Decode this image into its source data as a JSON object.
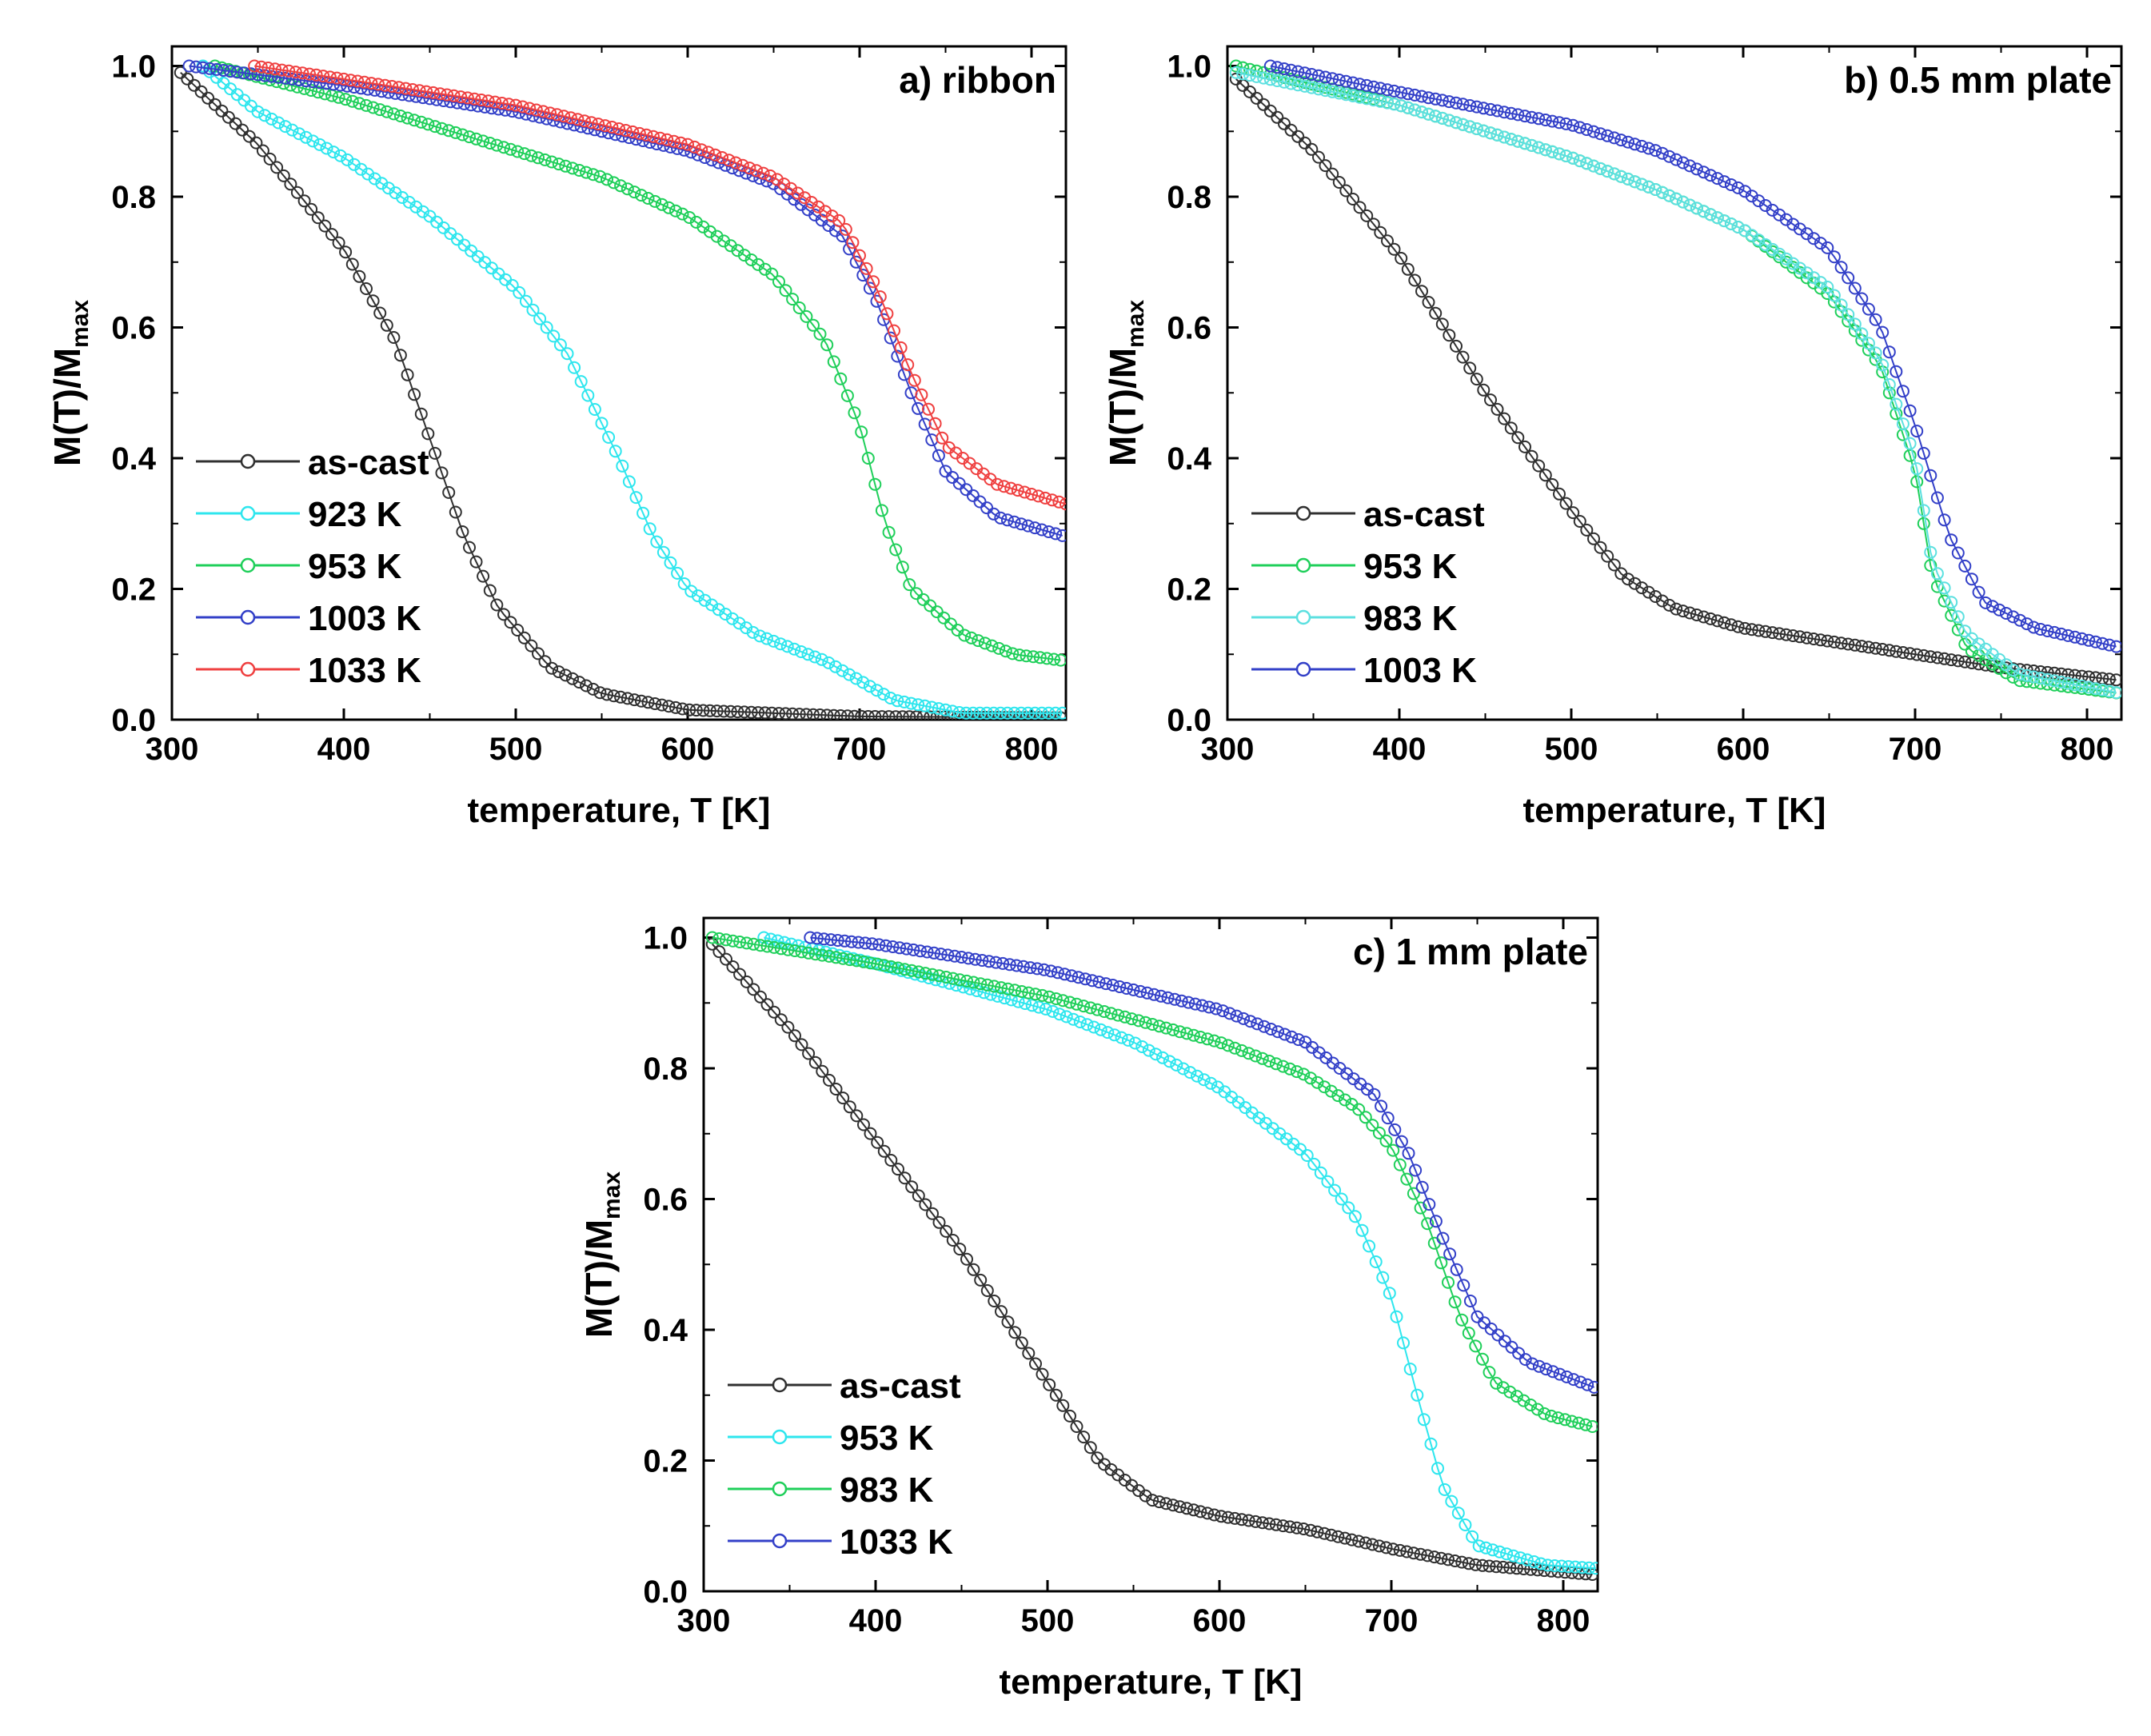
{
  "colors": {
    "as-cast": "#303030",
    "923 K": "#2ee6ee",
    "953 K": "#1fcf5a",
    "953 K_c": "#2ee6ee",
    "983 K": "#1fcf5a",
    "983 K_b": "#5ce0e0",
    "1003 K": "#3340c8",
    "1033 K": "#ef4040"
  },
  "chart_data": [
    {
      "id": "a",
      "type": "scatter",
      "title": "a) ribbon",
      "xlabel": "temperature, T [K]",
      "ylabel": "M(T)/M",
      "ylabel_sub": "max",
      "xlim": [
        300,
        820
      ],
      "ylim": [
        0.0,
        1.03
      ],
      "xticks": [
        "300",
        "400",
        "500",
        "600",
        "700",
        "800"
      ],
      "yticks": [
        "0.0",
        "0.2",
        "0.4",
        "0.6",
        "0.8",
        "1.0"
      ],
      "legend_position": "lower-left",
      "series": [
        {
          "name": "as-cast",
          "color_key": "as-cast",
          "start": 305,
          "points": [
            [
              305,
              0.99
            ],
            [
              350,
              0.88
            ],
            [
              400,
              0.72
            ],
            [
              430,
              0.58
            ],
            [
              450,
              0.43
            ],
            [
              470,
              0.28
            ],
            [
              490,
              0.17
            ],
            [
              520,
              0.08
            ],
            [
              550,
              0.04
            ],
            [
              600,
              0.015
            ],
            [
              700,
              0.005
            ],
            [
              820,
              0.003
            ]
          ]
        },
        {
          "name": "923 K",
          "color_key": "923 K",
          "start": 318,
          "points": [
            [
              318,
              1.0
            ],
            [
              350,
              0.93
            ],
            [
              400,
              0.86
            ],
            [
              450,
              0.77
            ],
            [
              500,
              0.66
            ],
            [
              530,
              0.56
            ],
            [
              560,
              0.4
            ],
            [
              580,
              0.28
            ],
            [
              600,
              0.2
            ],
            [
              640,
              0.13
            ],
            [
              680,
              0.09
            ],
            [
              720,
              0.03
            ],
            [
              760,
              0.01
            ],
            [
              820,
              0.01
            ]
          ]
        },
        {
          "name": "953 K",
          "color_key": "953 K",
          "start": 325,
          "points": [
            [
              325,
              1.0
            ],
            [
              400,
              0.95
            ],
            [
              450,
              0.91
            ],
            [
              500,
              0.87
            ],
            [
              550,
              0.83
            ],
            [
              600,
              0.77
            ],
            [
              650,
              0.68
            ],
            [
              680,
              0.58
            ],
            [
              700,
              0.45
            ],
            [
              715,
              0.3
            ],
            [
              730,
              0.2
            ],
            [
              760,
              0.13
            ],
            [
              790,
              0.1
            ],
            [
              820,
              0.09
            ]
          ]
        },
        {
          "name": "1003 K",
          "color_key": "1003 K",
          "start": 310,
          "points": [
            [
              310,
              1.0
            ],
            [
              400,
              0.97
            ],
            [
              450,
              0.95
            ],
            [
              500,
              0.93
            ],
            [
              550,
              0.9
            ],
            [
              600,
              0.87
            ],
            [
              650,
              0.82
            ],
            [
              690,
              0.74
            ],
            [
              710,
              0.64
            ],
            [
              730,
              0.5
            ],
            [
              750,
              0.38
            ],
            [
              780,
              0.31
            ],
            [
              820,
              0.28
            ]
          ]
        },
        {
          "name": "1033 K",
          "color_key": "1033 K",
          "start": 348,
          "points": [
            [
              348,
              1.0
            ],
            [
              400,
              0.98
            ],
            [
              450,
              0.96
            ],
            [
              500,
              0.94
            ],
            [
              550,
              0.91
            ],
            [
              600,
              0.88
            ],
            [
              650,
              0.83
            ],
            [
              690,
              0.76
            ],
            [
              710,
              0.66
            ],
            [
              730,
              0.53
            ],
            [
              750,
              0.42
            ],
            [
              780,
              0.36
            ],
            [
              820,
              0.33
            ]
          ]
        }
      ]
    },
    {
      "id": "b",
      "type": "scatter",
      "title": "b) 0.5 mm plate",
      "xlabel": "temperature, T [K]",
      "ylabel": "M(T)/M",
      "ylabel_sub": "max",
      "xlim": [
        300,
        820
      ],
      "ylim": [
        0.0,
        1.03
      ],
      "xticks": [
        "300",
        "400",
        "500",
        "600",
        "700",
        "800"
      ],
      "yticks": [
        "0.0",
        "0.2",
        "0.4",
        "0.6",
        "0.8",
        "1.0"
      ],
      "legend_position": "lower-left",
      "series": [
        {
          "name": "as-cast",
          "color_key": "as-cast",
          "start": 305,
          "points": [
            [
              305,
              0.98
            ],
            [
              350,
              0.87
            ],
            [
              400,
              0.71
            ],
            [
              450,
              0.5
            ],
            [
              500,
              0.32
            ],
            [
              530,
              0.22
            ],
            [
              560,
              0.17
            ],
            [
              600,
              0.14
            ],
            [
              650,
              0.12
            ],
            [
              700,
              0.1
            ],
            [
              750,
              0.08
            ],
            [
              820,
              0.06
            ]
          ]
        },
        {
          "name": "953 K",
          "color_key": "983 K",
          "start": 305,
          "points": [
            [
              305,
              1.0
            ],
            [
              400,
              0.94
            ],
            [
              500,
              0.86
            ],
            [
              550,
              0.81
            ],
            [
              600,
              0.75
            ],
            [
              650,
              0.65
            ],
            [
              680,
              0.54
            ],
            [
              700,
              0.38
            ],
            [
              710,
              0.22
            ],
            [
              730,
              0.11
            ],
            [
              760,
              0.06
            ],
            [
              820,
              0.04
            ]
          ]
        },
        {
          "name": "983 K",
          "color_key": "983 K_b",
          "start": 305,
          "points": [
            [
              305,
              0.99
            ],
            [
              400,
              0.94
            ],
            [
              500,
              0.86
            ],
            [
              550,
              0.81
            ],
            [
              600,
              0.75
            ],
            [
              650,
              0.66
            ],
            [
              680,
              0.55
            ],
            [
              700,
              0.4
            ],
            [
              710,
              0.24
            ],
            [
              730,
              0.13
            ],
            [
              760,
              0.07
            ],
            [
              820,
              0.04
            ]
          ]
        },
        {
          "name": "1003 K",
          "color_key": "1003 K",
          "start": 325,
          "points": [
            [
              325,
              1.0
            ],
            [
              400,
              0.96
            ],
            [
              500,
              0.91
            ],
            [
              550,
              0.87
            ],
            [
              600,
              0.81
            ],
            [
              650,
              0.72
            ],
            [
              680,
              0.6
            ],
            [
              700,
              0.45
            ],
            [
              720,
              0.28
            ],
            [
              740,
              0.18
            ],
            [
              770,
              0.14
            ],
            [
              820,
              0.11
            ]
          ]
        }
      ]
    },
    {
      "id": "c",
      "type": "scatter",
      "title": "c) 1 mm plate",
      "xlabel": "temperature, T [K]",
      "ylabel": "M(T)/M",
      "ylabel_sub": "max",
      "xlim": [
        300,
        820
      ],
      "ylim": [
        0.0,
        1.03
      ],
      "xticks": [
        "300",
        "400",
        "500",
        "600",
        "700",
        "800"
      ],
      "yticks": [
        "0.0",
        "0.2",
        "0.4",
        "0.6",
        "0.8",
        "1.0"
      ],
      "legend_position": "lower-left",
      "series": [
        {
          "name": "as-cast",
          "color_key": "as-cast",
          "start": 305,
          "points": [
            [
              305,
              0.99
            ],
            [
              350,
              0.86
            ],
            [
              400,
              0.69
            ],
            [
              450,
              0.52
            ],
            [
              500,
              0.32
            ],
            [
              530,
              0.2
            ],
            [
              560,
              0.14
            ],
            [
              600,
              0.115
            ],
            [
              650,
              0.095
            ],
            [
              700,
              0.065
            ],
            [
              750,
              0.04
            ],
            [
              820,
              0.025
            ]
          ]
        },
        {
          "name": "953 K",
          "color_key": "953 K_c",
          "start": 335,
          "points": [
            [
              335,
              1.0
            ],
            [
              400,
              0.96
            ],
            [
              500,
              0.89
            ],
            [
              550,
              0.84
            ],
            [
              600,
              0.77
            ],
            [
              650,
              0.67
            ],
            [
              680,
              0.57
            ],
            [
              700,
              0.45
            ],
            [
              715,
              0.3
            ],
            [
              730,
              0.16
            ],
            [
              750,
              0.07
            ],
            [
              790,
              0.04
            ],
            [
              820,
              0.035
            ]
          ]
        },
        {
          "name": "983 K",
          "color_key": "983 K",
          "start": 305,
          "points": [
            [
              305,
              1.0
            ],
            [
              400,
              0.96
            ],
            [
              500,
              0.91
            ],
            [
              600,
              0.84
            ],
            [
              650,
              0.79
            ],
            [
              680,
              0.74
            ],
            [
              700,
              0.68
            ],
            [
              720,
              0.57
            ],
            [
              740,
              0.42
            ],
            [
              760,
              0.32
            ],
            [
              790,
              0.27
            ],
            [
              820,
              0.25
            ]
          ]
        },
        {
          "name": "1033 K",
          "color_key": "1003 K",
          "start": 362,
          "points": [
            [
              362,
              1.0
            ],
            [
              400,
              0.99
            ],
            [
              500,
              0.95
            ],
            [
              600,
              0.89
            ],
            [
              650,
              0.84
            ],
            [
              690,
              0.76
            ],
            [
              710,
              0.67
            ],
            [
              730,
              0.54
            ],
            [
              750,
              0.42
            ],
            [
              780,
              0.35
            ],
            [
              820,
              0.31
            ]
          ]
        }
      ]
    }
  ]
}
